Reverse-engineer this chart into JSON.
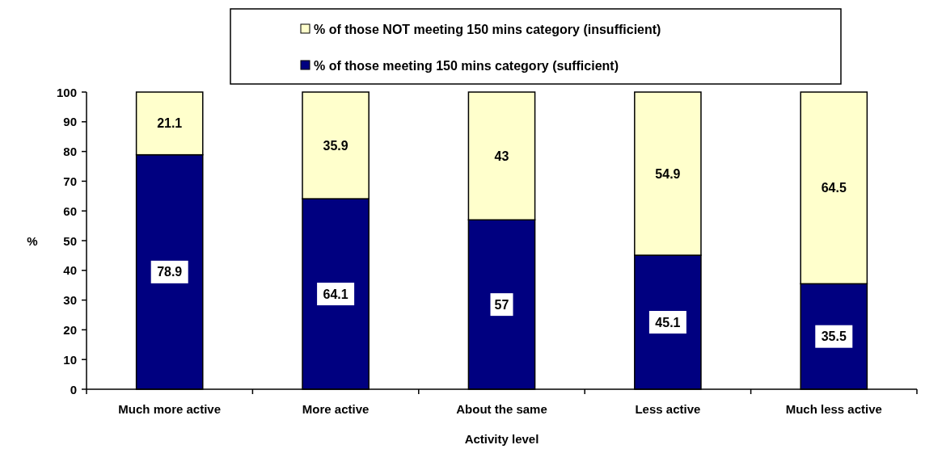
{
  "chart_data": {
    "type": "bar",
    "stacked": true,
    "xlabel": "Activity level",
    "ylabel": "%",
    "categories": [
      "Much more active",
      "More active",
      "About the same",
      "Less active",
      "Much less active"
    ],
    "series": [
      {
        "name": "% of those meeting 150 mins category (sufficient)",
        "color": "#000080",
        "values": [
          78.9,
          64.1,
          57,
          45.1,
          35.5
        ]
      },
      {
        "name": "% of those NOT meeting 150 mins category (insufficient)",
        "color": "#ffffcc",
        "values": [
          21.1,
          35.9,
          43,
          54.9,
          64.5
        ]
      }
    ],
    "ylim": [
      0,
      100
    ],
    "yticks": [
      0,
      10,
      20,
      30,
      40,
      50,
      60,
      70,
      80,
      90,
      100
    ],
    "data_labels": true,
    "legend": "top",
    "grid": false
  }
}
